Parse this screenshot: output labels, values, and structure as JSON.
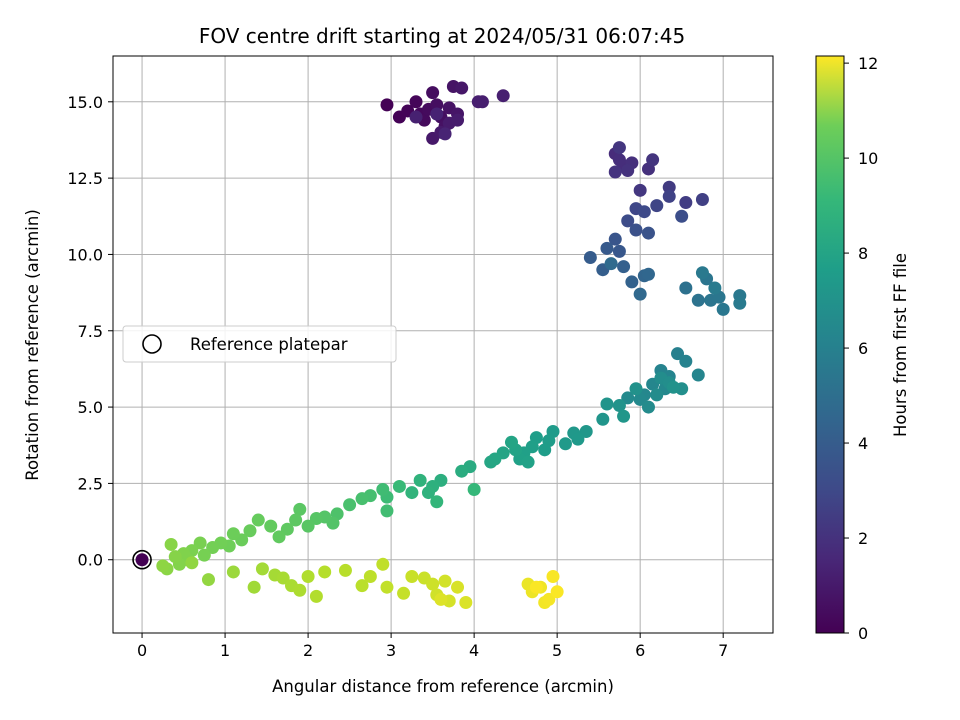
{
  "chart_data": {
    "type": "scatter",
    "title": "FOV centre drift starting at 2024/05/31 06:07:45",
    "xlabel": "Angular distance from reference (arcmin)",
    "ylabel": "Rotation from reference (arcmin)",
    "xlim": [
      -0.35,
      7.6
    ],
    "ylim": [
      -2.4,
      16.5
    ],
    "xticks": [
      "0",
      "1",
      "2",
      "3",
      "4",
      "5",
      "6",
      "7"
    ],
    "yticks": [
      "0.0",
      "2.5",
      "5.0",
      "7.5",
      "10.0",
      "12.5",
      "15.0"
    ],
    "xtick_values": [
      0,
      1,
      2,
      3,
      4,
      5,
      6,
      7
    ],
    "ytick_values": [
      0,
      2.5,
      5,
      7.5,
      10,
      12.5,
      15
    ],
    "grid": true,
    "legend": {
      "position": "center-left",
      "entries": [
        "Reference platepar"
      ]
    },
    "colorbar": {
      "label": "Hours from first FF file",
      "range": [
        0,
        12.15
      ],
      "ticks": [
        "0",
        "2",
        "4",
        "6",
        "8",
        "10",
        "12"
      ],
      "tick_values": [
        0,
        2,
        4,
        6,
        8,
        10,
        12
      ],
      "colormap": "viridis"
    },
    "reference_point": {
      "x": 0,
      "y": 0,
      "label": "Reference platepar"
    },
    "series": [
      {
        "points": [
          [
            2.95,
            14.9,
            0.02
          ],
          [
            3.1,
            14.5,
            0.08
          ],
          [
            3.2,
            14.7,
            0.12
          ],
          [
            3.3,
            15.0,
            0.18
          ],
          [
            3.35,
            14.6,
            0.25
          ],
          [
            3.4,
            14.4,
            0.3
          ],
          [
            3.45,
            14.75,
            0.35
          ],
          [
            3.5,
            15.3,
            0.4
          ],
          [
            3.55,
            14.9,
            0.45
          ],
          [
            3.6,
            14.5,
            0.5
          ],
          [
            3.65,
            14.2,
            0.55
          ],
          [
            3.7,
            14.8,
            0.6
          ],
          [
            3.75,
            15.5,
            0.65
          ],
          [
            3.8,
            14.6,
            0.7
          ],
          [
            3.85,
            15.45,
            0.75
          ],
          [
            3.5,
            13.8,
            0.8
          ],
          [
            3.6,
            14.0,
            0.85
          ],
          [
            3.7,
            14.3,
            0.9
          ],
          [
            3.8,
            14.4,
            0.95
          ],
          [
            4.05,
            15.0,
            1.0
          ],
          [
            4.1,
            15.0,
            1.02
          ],
          [
            4.35,
            15.2,
            1.05
          ],
          [
            3.3,
            14.5,
            1.1
          ],
          [
            3.55,
            14.6,
            1.15
          ],
          [
            3.65,
            13.95,
            1.2
          ],
          [
            5.7,
            13.3,
            1.5
          ],
          [
            5.8,
            12.9,
            1.55
          ],
          [
            5.75,
            13.1,
            1.6
          ],
          [
            5.9,
            13.0,
            1.65
          ],
          [
            6.1,
            12.8,
            1.7
          ],
          [
            5.85,
            12.75,
            1.75
          ],
          [
            5.7,
            12.7,
            1.8
          ],
          [
            6.15,
            13.1,
            1.85
          ],
          [
            5.75,
            13.5,
            1.9
          ],
          [
            6.0,
            12.1,
            1.95
          ],
          [
            6.35,
            12.2,
            2.1
          ],
          [
            6.55,
            11.7,
            2.2
          ],
          [
            6.75,
            11.8,
            2.3
          ],
          [
            6.35,
            11.9,
            2.4
          ],
          [
            6.2,
            11.6,
            2.5
          ],
          [
            5.95,
            11.5,
            2.6
          ],
          [
            6.05,
            11.4,
            2.7
          ],
          [
            5.85,
            11.1,
            2.8
          ],
          [
            6.5,
            11.25,
            2.9
          ],
          [
            5.95,
            10.8,
            3.0
          ],
          [
            6.1,
            10.7,
            3.1
          ],
          [
            5.7,
            10.5,
            3.2
          ],
          [
            5.75,
            10.1,
            3.3
          ],
          [
            5.6,
            10.2,
            3.4
          ],
          [
            5.4,
            9.9,
            3.5
          ],
          [
            5.55,
            9.5,
            3.6
          ],
          [
            5.8,
            9.6,
            3.7
          ],
          [
            5.9,
            9.1,
            3.8
          ],
          [
            6.05,
            9.3,
            3.9
          ],
          [
            6.1,
            9.35,
            4.0
          ],
          [
            6.0,
            8.7,
            4.1
          ],
          [
            5.65,
            9.7,
            4.2
          ],
          [
            6.55,
            8.9,
            4.5
          ],
          [
            6.7,
            8.5,
            4.6
          ],
          [
            6.85,
            8.5,
            4.7
          ],
          [
            6.8,
            9.2,
            4.75
          ],
          [
            6.95,
            8.6,
            4.8
          ],
          [
            7.0,
            8.2,
            4.85
          ],
          [
            7.2,
            8.65,
            4.9
          ],
          [
            6.75,
            9.4,
            4.95
          ],
          [
            7.2,
            8.4,
            5.0
          ],
          [
            6.9,
            8.9,
            5.05
          ],
          [
            6.45,
            6.75,
            5.3
          ],
          [
            6.55,
            6.5,
            5.4
          ],
          [
            6.25,
            6.2,
            5.45
          ],
          [
            6.35,
            6.0,
            5.5
          ],
          [
            6.7,
            6.05,
            5.55
          ],
          [
            6.15,
            5.75,
            5.6
          ],
          [
            6.05,
            5.4,
            5.65
          ],
          [
            6.3,
            5.6,
            5.7
          ],
          [
            6.0,
            5.25,
            5.75
          ],
          [
            5.85,
            5.3,
            5.8
          ],
          [
            6.1,
            5.0,
            5.85
          ],
          [
            6.2,
            5.4,
            5.9
          ],
          [
            6.25,
            5.95,
            5.95
          ],
          [
            6.35,
            5.8,
            6.0
          ],
          [
            6.5,
            5.6,
            6.05
          ],
          [
            5.95,
            5.6,
            6.1
          ],
          [
            6.4,
            5.65,
            6.15
          ],
          [
            5.75,
            5.05,
            6.2
          ],
          [
            5.6,
            5.1,
            6.25
          ],
          [
            5.55,
            4.6,
            6.3
          ],
          [
            5.8,
            4.7,
            6.35
          ],
          [
            5.35,
            4.2,
            6.4
          ],
          [
            5.2,
            4.15,
            6.45
          ],
          [
            5.25,
            3.95,
            6.5
          ],
          [
            5.1,
            3.8,
            6.55
          ],
          [
            4.95,
            4.2,
            6.6
          ],
          [
            4.9,
            3.9,
            6.65
          ],
          [
            4.85,
            3.6,
            6.7
          ],
          [
            4.75,
            4.0,
            6.75
          ],
          [
            4.7,
            3.7,
            6.8
          ],
          [
            4.6,
            3.5,
            6.85
          ],
          [
            4.55,
            3.3,
            6.9
          ],
          [
            4.65,
            3.2,
            6.95
          ],
          [
            4.5,
            3.6,
            7.0
          ],
          [
            4.45,
            3.85,
            7.05
          ],
          [
            4.35,
            3.5,
            7.1
          ],
          [
            4.2,
            3.2,
            7.15
          ],
          [
            4.25,
            3.3,
            7.2
          ],
          [
            3.95,
            3.05,
            7.4
          ],
          [
            3.85,
            2.9,
            7.5
          ],
          [
            3.6,
            2.6,
            7.6
          ],
          [
            3.5,
            2.4,
            7.7
          ],
          [
            3.45,
            2.2,
            7.8
          ],
          [
            3.35,
            2.6,
            7.85
          ],
          [
            3.25,
            2.2,
            7.9
          ],
          [
            3.55,
            1.9,
            8.0
          ],
          [
            4.0,
            2.3,
            8.1
          ],
          [
            3.1,
            2.4,
            8.2
          ],
          [
            2.95,
            2.05,
            8.3
          ],
          [
            2.9,
            2.3,
            8.35
          ],
          [
            2.95,
            1.6,
            8.4
          ],
          [
            2.75,
            2.1,
            8.5
          ],
          [
            2.65,
            2.0,
            8.55
          ],
          [
            2.5,
            1.8,
            8.6
          ],
          [
            2.35,
            1.5,
            8.7
          ],
          [
            2.3,
            1.2,
            8.8
          ],
          [
            2.2,
            1.4,
            8.85
          ],
          [
            2.1,
            1.35,
            8.9
          ],
          [
            2.0,
            1.1,
            8.95
          ],
          [
            1.9,
            1.65,
            9.0
          ],
          [
            1.85,
            1.3,
            9.05
          ],
          [
            1.75,
            1.0,
            9.1
          ],
          [
            1.65,
            0.75,
            9.15
          ],
          [
            1.55,
            1.1,
            9.2
          ],
          [
            1.4,
            1.3,
            9.25
          ],
          [
            1.3,
            0.95,
            9.3
          ],
          [
            1.2,
            0.65,
            9.35
          ],
          [
            1.1,
            0.85,
            9.4
          ],
          [
            1.05,
            0.45,
            9.45
          ],
          [
            0.95,
            0.55,
            9.5
          ],
          [
            0.85,
            0.4,
            9.55
          ],
          [
            0.75,
            0.15,
            9.6
          ],
          [
            0.7,
            0.55,
            9.65
          ],
          [
            0.6,
            0.3,
            9.7
          ],
          [
            0.55,
            0.0,
            9.75
          ],
          [
            0.5,
            0.2,
            9.8
          ],
          [
            0.45,
            -0.15,
            9.85
          ],
          [
            0.4,
            0.1,
            9.9
          ],
          [
            0.35,
            0.5,
            9.95
          ],
          [
            0.3,
            -0.3,
            10.0
          ],
          [
            0.25,
            -0.2,
            10.05
          ],
          [
            0.6,
            -0.1,
            10.1
          ],
          [
            0.8,
            -0.65,
            10.15
          ],
          [
            1.1,
            -0.4,
            10.3
          ],
          [
            1.35,
            -0.9,
            10.4
          ],
          [
            1.45,
            -0.3,
            10.45
          ],
          [
            1.6,
            -0.5,
            10.5
          ],
          [
            1.7,
            -0.6,
            10.55
          ],
          [
            1.8,
            -0.85,
            10.6
          ],
          [
            1.9,
            -1.0,
            10.65
          ],
          [
            2.0,
            -0.55,
            10.7
          ],
          [
            2.1,
            -1.2,
            10.75
          ],
          [
            2.2,
            -0.4,
            10.8
          ],
          [
            2.45,
            -0.35,
            10.85
          ],
          [
            2.65,
            -0.85,
            10.9
          ],
          [
            2.75,
            -0.55,
            10.95
          ],
          [
            2.9,
            -0.15,
            11.0
          ],
          [
            2.95,
            -0.9,
            11.05
          ],
          [
            3.15,
            -1.1,
            11.1
          ],
          [
            3.25,
            -0.55,
            11.15
          ],
          [
            3.4,
            -0.6,
            11.2
          ],
          [
            3.5,
            -0.8,
            11.25
          ],
          [
            3.55,
            -1.15,
            11.3
          ],
          [
            3.65,
            -0.7,
            11.35
          ],
          [
            3.7,
            -1.35,
            11.4
          ],
          [
            3.8,
            -0.9,
            11.45
          ],
          [
            3.9,
            -1.4,
            11.5
          ],
          [
            3.6,
            -1.3,
            11.55
          ],
          [
            4.65,
            -0.8,
            11.8
          ],
          [
            4.7,
            -1.05,
            11.85
          ],
          [
            4.8,
            -0.9,
            11.9
          ],
          [
            4.85,
            -1.4,
            11.95
          ],
          [
            4.9,
            -1.3,
            12.0
          ],
          [
            4.95,
            -0.55,
            12.05
          ],
          [
            5.0,
            -1.05,
            12.1
          ],
          [
            4.75,
            -0.9,
            12.1
          ]
        ]
      }
    ]
  }
}
